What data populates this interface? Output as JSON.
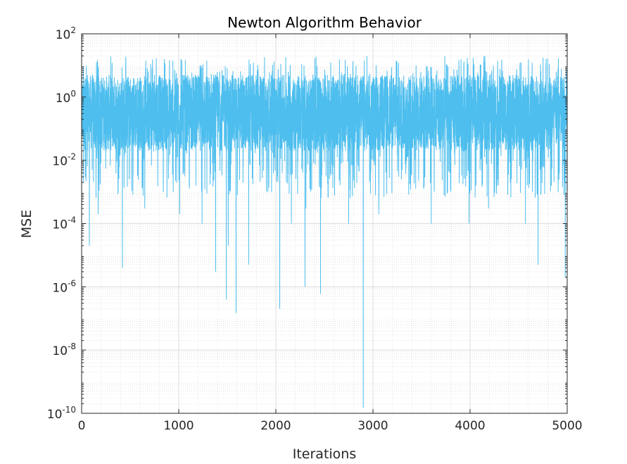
{
  "chart_data": {
    "type": "line",
    "title": "Newton Algorithm Behavior",
    "xlabel": "Iterations",
    "ylabel": "MSE",
    "xlim": [
      0,
      5000
    ],
    "ylim": [
      1e-10,
      100
    ],
    "yscale": "log",
    "grid": true,
    "minor_grid": true,
    "line_color": "#4DBEEE",
    "x_ticks": [
      0,
      1000,
      2000,
      3000,
      4000,
      5000
    ],
    "x_tick_labels": [
      "0",
      "1000",
      "2000",
      "3000",
      "4000",
      "5000"
    ],
    "y_ticks": [
      {
        "value": 1e-10,
        "base": "10",
        "exp": "-10"
      },
      {
        "value": 1e-08,
        "base": "10",
        "exp": "-8"
      },
      {
        "value": 1e-06,
        "base": "10",
        "exp": "-6"
      },
      {
        "value": 0.0001,
        "base": "10",
        "exp": "-4"
      },
      {
        "value": 0.01,
        "base": "10",
        "exp": "-2"
      },
      {
        "value": 1,
        "base": "10",
        "exp": "0"
      },
      {
        "value": 100,
        "base": "10",
        "exp": "2"
      }
    ],
    "series": [
      {
        "n_points": 5000,
        "band_typical": [
          0.02,
          5
        ],
        "peak_max": 20,
        "notable_dips": [
          {
            "x": 20,
            "y": 0.002
          },
          {
            "x": 80,
            "y": 2e-05
          },
          {
            "x": 170,
            "y": 0.0002
          },
          {
            "x": 420,
            "y": 4e-06
          },
          {
            "x": 650,
            "y": 0.0003
          },
          {
            "x": 1010,
            "y": 0.0002
          },
          {
            "x": 1240,
            "y": 0.0001
          },
          {
            "x": 1380,
            "y": 3e-06
          },
          {
            "x": 1490,
            "y": 4e-07
          },
          {
            "x": 1510,
            "y": 2e-05
          },
          {
            "x": 1590,
            "y": 1.5e-07
          },
          {
            "x": 1720,
            "y": 5e-06
          },
          {
            "x": 2040,
            "y": 2e-07
          },
          {
            "x": 2160,
            "y": 0.0001
          },
          {
            "x": 2300,
            "y": 1e-06
          },
          {
            "x": 2310,
            "y": 0.0003
          },
          {
            "x": 2460,
            "y": 6e-07
          },
          {
            "x": 2750,
            "y": 0.0001
          },
          {
            "x": 2900,
            "y": 1.5e-10
          },
          {
            "x": 3060,
            "y": 0.0002
          },
          {
            "x": 3600,
            "y": 0.0001
          },
          {
            "x": 3990,
            "y": 0.0001
          },
          {
            "x": 4190,
            "y": 0.0003
          },
          {
            "x": 4570,
            "y": 0.0001
          },
          {
            "x": 4700,
            "y": 5e-06
          },
          {
            "x": 4980,
            "y": 2e-06
          }
        ]
      }
    ]
  }
}
